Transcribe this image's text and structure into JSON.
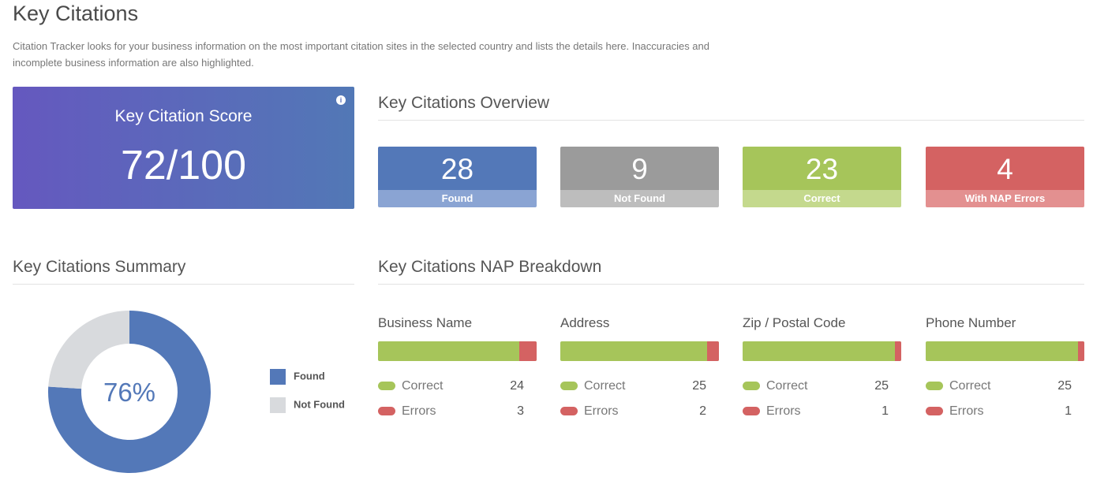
{
  "page": {
    "title": "Key Citations",
    "description": "Citation Tracker looks for your business information on the most important citation sites in the selected country and lists the details here. Inaccuracies and incomplete business information are also highlighted."
  },
  "score_card": {
    "label": "Key Citation Score",
    "value": "72/100",
    "info_icon": "i"
  },
  "overview": {
    "title": "Key Citations Overview",
    "tiles": [
      {
        "value": "28",
        "label": "Found",
        "color": "#5378b8",
        "label_color": "#8aa4d3"
      },
      {
        "value": "9",
        "label": "Not Found",
        "color": "#9b9b9b",
        "label_color": "#bdbdbd"
      },
      {
        "value": "23",
        "label": "Correct",
        "color": "#a6c55a",
        "label_color": "#c4d98d"
      },
      {
        "value": "4",
        "label": "With NAP Errors",
        "color": "#d46262",
        "label_color": "#e39090"
      }
    ]
  },
  "summary": {
    "title": "Key Citations Summary",
    "center_label": "76%",
    "chart_data": {
      "type": "pie",
      "slices": [
        {
          "name": "Found",
          "value": 76,
          "color": "#5378b8"
        },
        {
          "name": "Not Found",
          "value": 24,
          "color": "#d8dadd"
        }
      ]
    },
    "legend": [
      {
        "label": "Found",
        "color": "#5378b8"
      },
      {
        "label": "Not Found",
        "color": "#d8dadd"
      }
    ]
  },
  "nap": {
    "title": "Key Citations NAP Breakdown",
    "correct_label": "Correct",
    "errors_label": "Errors",
    "correct_color": "#a6c55a",
    "error_color": "#d46262",
    "items": [
      {
        "name": "Business Name",
        "correct": "24",
        "errors": "3"
      },
      {
        "name": "Address",
        "correct": "25",
        "errors": "2"
      },
      {
        "name": "Zip / Postal Code",
        "correct": "25",
        "errors": "1"
      },
      {
        "name": "Phone Number",
        "correct": "25",
        "errors": "1"
      }
    ]
  }
}
